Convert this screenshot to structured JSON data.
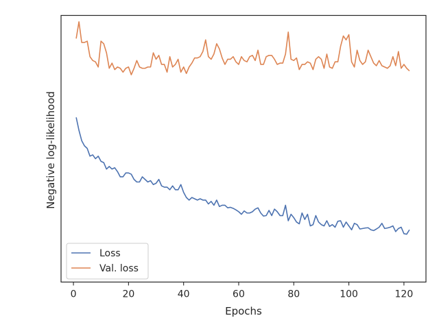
{
  "chart_data": {
    "type": "line",
    "title": "",
    "xlabel": "Epochs",
    "ylabel": "Negative log-likelihood",
    "xlim": [
      -4.5,
      128
    ],
    "ylim": [
      0,
      1
    ],
    "x_ticks": [
      0,
      20,
      40,
      60,
      80,
      100,
      120
    ],
    "x_tick_labels": [
      "0",
      "20",
      "40",
      "60",
      "80",
      "100",
      "120"
    ],
    "y_ticks_labeled": false,
    "grid": false,
    "legend_position": "lower-left",
    "colors": {
      "loss": "#4c72b0",
      "val_loss": "#dd8452",
      "axes": "#262626"
    },
    "x": [
      1,
      2,
      3,
      4,
      5,
      6,
      7,
      8,
      9,
      10,
      11,
      12,
      13,
      14,
      15,
      16,
      17,
      18,
      19,
      20,
      21,
      22,
      23,
      24,
      25,
      26,
      27,
      28,
      29,
      30,
      31,
      32,
      33,
      34,
      35,
      36,
      37,
      38,
      39,
      40,
      41,
      42,
      43,
      44,
      45,
      46,
      47,
      48,
      49,
      50,
      51,
      52,
      53,
      54,
      55,
      56,
      57,
      58,
      59,
      60,
      61,
      62,
      63,
      64,
      65,
      66,
      67,
      68,
      69,
      70,
      71,
      72,
      73,
      74,
      75,
      76,
      77,
      78,
      79,
      80,
      81,
      82,
      83,
      84,
      85,
      86,
      87,
      88,
      89,
      90,
      91,
      92,
      93,
      94,
      95,
      96,
      97,
      98,
      99,
      100,
      101,
      102,
      103,
      104,
      105,
      106,
      107,
      108,
      109,
      110,
      111,
      112,
      113,
      114,
      115,
      116,
      117,
      118,
      119,
      120,
      121,
      122
    ],
    "series": [
      {
        "name": "Loss",
        "color": "#4c72b0",
        "values": [
          0.62,
          0.57,
          0.53,
          0.51,
          0.5,
          0.47,
          0.475,
          0.46,
          0.47,
          0.45,
          0.445,
          0.42,
          0.43,
          0.42,
          0.425,
          0.41,
          0.39,
          0.39,
          0.405,
          0.405,
          0.4,
          0.38,
          0.37,
          0.37,
          0.39,
          0.38,
          0.37,
          0.375,
          0.36,
          0.365,
          0.38,
          0.355,
          0.35,
          0.35,
          0.34,
          0.355,
          0.34,
          0.34,
          0.36,
          0.33,
          0.31,
          0.3,
          0.31,
          0.305,
          0.3,
          0.305,
          0.3,
          0.3,
          0.285,
          0.295,
          0.28,
          0.3,
          0.275,
          0.28,
          0.28,
          0.27,
          0.272,
          0.268,
          0.262,
          0.255,
          0.245,
          0.258,
          0.25,
          0.25,
          0.255,
          0.265,
          0.27,
          0.25,
          0.238,
          0.24,
          0.26,
          0.24,
          0.265,
          0.255,
          0.24,
          0.24,
          0.28,
          0.22,
          0.245,
          0.232,
          0.215,
          0.208,
          0.25,
          0.225,
          0.245,
          0.2,
          0.205,
          0.24,
          0.215,
          0.205,
          0.2,
          0.22,
          0.198,
          0.205,
          0.195,
          0.218,
          0.22,
          0.195,
          0.215,
          0.2,
          0.185,
          0.21,
          0.205,
          0.188,
          0.19,
          0.192,
          0.193,
          0.185,
          0.182,
          0.188,
          0.195,
          0.21,
          0.19,
          0.192,
          0.195,
          0.2,
          0.178,
          0.19,
          0.195,
          0.17,
          0.168,
          0.185
        ]
      },
      {
        "name": "Val. loss",
        "color": "#dd8452",
        "values": [
          0.925,
          0.99,
          0.91,
          0.91,
          0.915,
          0.855,
          0.84,
          0.835,
          0.815,
          0.915,
          0.905,
          0.87,
          0.81,
          0.83,
          0.805,
          0.815,
          0.81,
          0.795,
          0.81,
          0.815,
          0.785,
          0.81,
          0.84,
          0.815,
          0.81,
          0.81,
          0.815,
          0.815,
          0.87,
          0.845,
          0.86,
          0.825,
          0.825,
          0.795,
          0.855,
          0.815,
          0.825,
          0.845,
          0.795,
          0.815,
          0.79,
          0.815,
          0.83,
          0.85,
          0.85,
          0.855,
          0.875,
          0.92,
          0.855,
          0.845,
          0.865,
          0.905,
          0.885,
          0.85,
          0.825,
          0.845,
          0.845,
          0.855,
          0.835,
          0.825,
          0.855,
          0.84,
          0.835,
          0.855,
          0.86,
          0.84,
          0.88,
          0.825,
          0.825,
          0.855,
          0.86,
          0.86,
          0.845,
          0.825,
          0.83,
          0.83,
          0.865,
          0.95,
          0.845,
          0.84,
          0.85,
          0.805,
          0.825,
          0.825,
          0.835,
          0.83,
          0.805,
          0.845,
          0.855,
          0.845,
          0.81,
          0.865,
          0.815,
          0.81,
          0.835,
          0.835,
          0.895,
          0.935,
          0.92,
          0.94,
          0.835,
          0.815,
          0.88,
          0.84,
          0.825,
          0.835,
          0.88,
          0.855,
          0.83,
          0.82,
          0.84,
          0.82,
          0.815,
          0.81,
          0.82,
          0.855,
          0.82,
          0.875,
          0.81,
          0.825,
          0.81,
          0.8
        ]
      }
    ]
  }
}
